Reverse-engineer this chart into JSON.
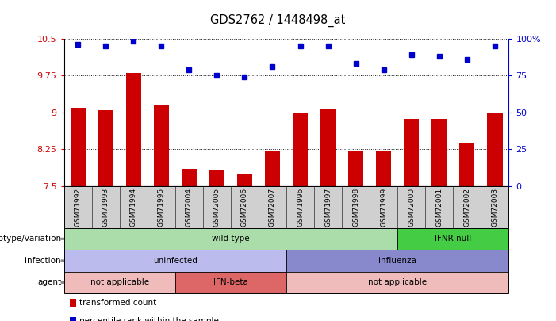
{
  "title": "GDS2762 / 1448498_at",
  "samples": [
    "GSM71992",
    "GSM71993",
    "GSM71994",
    "GSM71995",
    "GSM72004",
    "GSM72005",
    "GSM72006",
    "GSM72007",
    "GSM71996",
    "GSM71997",
    "GSM71998",
    "GSM71999",
    "GSM72000",
    "GSM72001",
    "GSM72002",
    "GSM72003"
  ],
  "bar_values": [
    9.1,
    9.05,
    9.8,
    9.15,
    7.85,
    7.82,
    7.75,
    8.22,
    9.0,
    9.07,
    8.2,
    8.22,
    8.87,
    8.87,
    8.37,
    9.0
  ],
  "dot_values": [
    96,
    95,
    98,
    95,
    79,
    75,
    74,
    81,
    95,
    95,
    83,
    79,
    89,
    88,
    86,
    95
  ],
  "ylim_left": [
    7.5,
    10.5
  ],
  "ylim_right": [
    0,
    100
  ],
  "yticks_left": [
    7.5,
    8.25,
    9.0,
    9.75,
    10.5
  ],
  "yticks_right": [
    0,
    25,
    50,
    75,
    100
  ],
  "ytick_labels_left": [
    "7.5",
    "8.25",
    "9",
    "9.75",
    "10.5"
  ],
  "ytick_labels_right": [
    "0",
    "25",
    "50",
    "75",
    "100%"
  ],
  "bar_color": "#cc0000",
  "dot_color": "#0000cc",
  "background_color": "#ffffff",
  "plot_bg_color": "#ffffff",
  "xtick_bg_color": "#d0d0d0",
  "annotation_rows": [
    {
      "label": "genotype/variation",
      "segments": [
        {
          "text": "wild type",
          "start": 0,
          "end": 12,
          "color": "#aaddaa"
        },
        {
          "text": "IFNR null",
          "start": 12,
          "end": 16,
          "color": "#44cc44"
        }
      ]
    },
    {
      "label": "infection",
      "segments": [
        {
          "text": "uninfected",
          "start": 0,
          "end": 8,
          "color": "#bbbbee"
        },
        {
          "text": "influenza",
          "start": 8,
          "end": 16,
          "color": "#8888cc"
        }
      ]
    },
    {
      "label": "agent",
      "segments": [
        {
          "text": "not applicable",
          "start": 0,
          "end": 4,
          "color": "#f0bbbb"
        },
        {
          "text": "IFN-beta",
          "start": 4,
          "end": 8,
          "color": "#dd6666"
        },
        {
          "text": "not applicable",
          "start": 8,
          "end": 16,
          "color": "#f0bbbb"
        }
      ]
    }
  ],
  "legend_items": [
    {
      "label": "transformed count",
      "color": "#cc0000"
    },
    {
      "label": "percentile rank within the sample",
      "color": "#0000cc"
    }
  ]
}
